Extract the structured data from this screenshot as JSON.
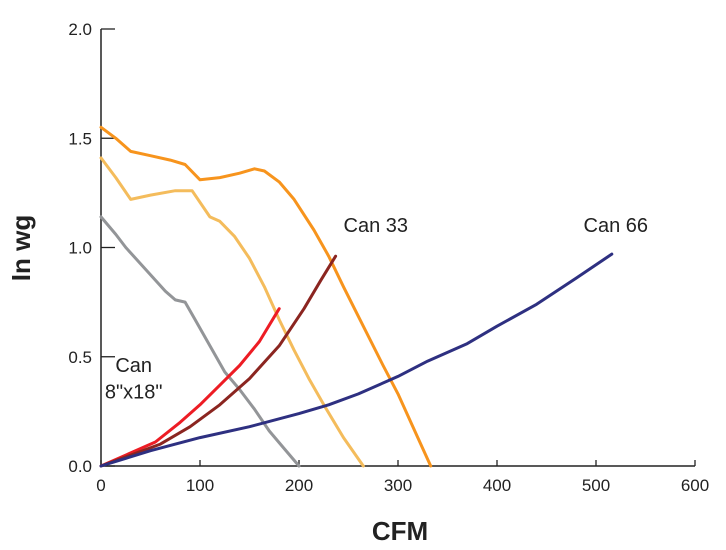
{
  "chart_data": {
    "type": "line",
    "xlabel": "CFM",
    "ylabel": "In wg",
    "xlim": [
      0,
      600
    ],
    "ylim": [
      0,
      2.0
    ],
    "x_ticks": [
      "0",
      "100",
      "200",
      "300",
      "400",
      "500",
      "600"
    ],
    "y_ticks": [
      "0.0",
      "0.5",
      "1.0",
      "1.5",
      "2.0"
    ],
    "grid": false,
    "annotations": [
      {
        "text": "Can 33",
        "x": 245,
        "y": 1.07
      },
      {
        "text": "Can 66",
        "x": 520,
        "y": 1.07
      },
      {
        "text": "Can",
        "x": 33,
        "y": 0.43
      },
      {
        "text": "8\"x18\"",
        "x": 33,
        "y": 0.31
      }
    ],
    "series": [
      {
        "color": "#f7941d",
        "points": [
          [
            0,
            1.55
          ],
          [
            15,
            1.5
          ],
          [
            30,
            1.44
          ],
          [
            50,
            1.42
          ],
          [
            70,
            1.4
          ],
          [
            85,
            1.38
          ],
          [
            100,
            1.31
          ],
          [
            120,
            1.32
          ],
          [
            140,
            1.34
          ],
          [
            155,
            1.36
          ],
          [
            165,
            1.35
          ],
          [
            180,
            1.3
          ],
          [
            195,
            1.22
          ],
          [
            215,
            1.08
          ],
          [
            230,
            0.96
          ],
          [
            245,
            0.82
          ],
          [
            265,
            0.64
          ],
          [
            285,
            0.46
          ],
          [
            300,
            0.33
          ],
          [
            320,
            0.13
          ],
          [
            333,
            0.0
          ]
        ]
      },
      {
        "color": "#f4bc5c",
        "points": [
          [
            0,
            1.41
          ],
          [
            15,
            1.32
          ],
          [
            30,
            1.22
          ],
          [
            50,
            1.24
          ],
          [
            75,
            1.26
          ],
          [
            92,
            1.26
          ],
          [
            110,
            1.14
          ],
          [
            120,
            1.12
          ],
          [
            135,
            1.05
          ],
          [
            150,
            0.95
          ],
          [
            165,
            0.82
          ],
          [
            180,
            0.67
          ],
          [
            195,
            0.53
          ],
          [
            210,
            0.4
          ],
          [
            225,
            0.28
          ],
          [
            245,
            0.13
          ],
          [
            265,
            0.0
          ]
        ]
      },
      {
        "color": "#939598",
        "points": [
          [
            0,
            1.14
          ],
          [
            15,
            1.06
          ],
          [
            25,
            1.0
          ],
          [
            45,
            0.9
          ],
          [
            65,
            0.8
          ],
          [
            75,
            0.76
          ],
          [
            85,
            0.75
          ],
          [
            95,
            0.67
          ],
          [
            110,
            0.55
          ],
          [
            125,
            0.43
          ],
          [
            140,
            0.35
          ],
          [
            155,
            0.26
          ],
          [
            170,
            0.16
          ],
          [
            185,
            0.08
          ],
          [
            200,
            0.0
          ]
        ]
      },
      {
        "color": "#ed1c24",
        "points": [
          [
            0,
            0.0
          ],
          [
            25,
            0.05
          ],
          [
            55,
            0.11
          ],
          [
            80,
            0.2
          ],
          [
            100,
            0.28
          ],
          [
            120,
            0.37
          ],
          [
            140,
            0.46
          ],
          [
            160,
            0.57
          ],
          [
            180,
            0.72
          ]
        ]
      },
      {
        "color": "#8b2520",
        "points": [
          [
            0,
            0.0
          ],
          [
            30,
            0.05
          ],
          [
            60,
            0.1
          ],
          [
            90,
            0.18
          ],
          [
            120,
            0.28
          ],
          [
            150,
            0.4
          ],
          [
            180,
            0.55
          ],
          [
            205,
            0.72
          ],
          [
            222,
            0.85
          ],
          [
            237,
            0.96
          ]
        ]
      },
      {
        "color": "#2e3081",
        "points": [
          [
            0,
            0.0
          ],
          [
            50,
            0.07
          ],
          [
            100,
            0.13
          ],
          [
            150,
            0.18
          ],
          [
            200,
            0.24
          ],
          [
            230,
            0.28
          ],
          [
            260,
            0.33
          ],
          [
            300,
            0.41
          ],
          [
            330,
            0.48
          ],
          [
            370,
            0.56
          ],
          [
            400,
            0.64
          ],
          [
            440,
            0.74
          ],
          [
            480,
            0.86
          ],
          [
            516,
            0.97
          ]
        ]
      }
    ]
  }
}
